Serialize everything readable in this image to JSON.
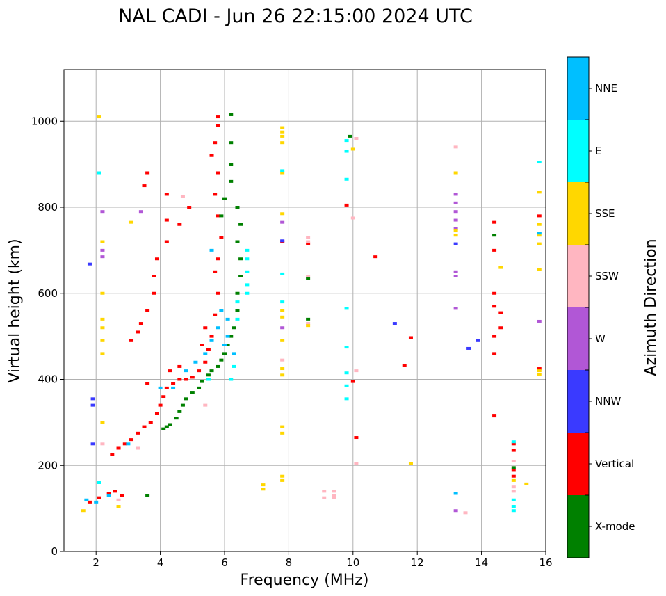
{
  "chart_data": {
    "type": "scatter",
    "title": "NAL CADI - Jun 26 22:15:00 2024 UTC",
    "xlabel": "Frequency (MHz)",
    "ylabel": "Virtual height (km)",
    "xlim": [
      1,
      16
    ],
    "ylim": [
      0,
      1120
    ],
    "xticks": [
      2,
      4,
      6,
      8,
      10,
      12,
      14,
      16
    ],
    "yticks": [
      0,
      200,
      400,
      600,
      800,
      1000
    ],
    "grid": true,
    "colorbar": {
      "title": "Azimuth Direction",
      "categories": [
        {
          "name": "X-mode",
          "color": "#008000"
        },
        {
          "name": "Vertical",
          "color": "#ff0000"
        },
        {
          "name": "NNW",
          "color": "#3a3aff"
        },
        {
          "name": "W",
          "color": "#b157d6"
        },
        {
          "name": "SSW",
          "color": "#ffb6c1"
        },
        {
          "name": "SSE",
          "color": "#ffd700"
        },
        {
          "name": "E",
          "color": "#00ffff"
        },
        {
          "name": "NNE",
          "color": "#00bfff"
        }
      ]
    },
    "series": [
      {
        "name": "Vertical",
        "points": [
          [
            1.8,
            115
          ],
          [
            2.1,
            125
          ],
          [
            2.4,
            135
          ],
          [
            2.6,
            140
          ],
          [
            2.8,
            130
          ],
          [
            2.5,
            225
          ],
          [
            2.7,
            240
          ],
          [
            2.9,
            250
          ],
          [
            3.1,
            260
          ],
          [
            3.3,
            275
          ],
          [
            3.5,
            290
          ],
          [
            3.7,
            300
          ],
          [
            3.9,
            320
          ],
          [
            4.0,
            340
          ],
          [
            4.1,
            360
          ],
          [
            4.2,
            380
          ],
          [
            4.4,
            390
          ],
          [
            4.6,
            400
          ],
          [
            4.8,
            400
          ],
          [
            5.0,
            405
          ],
          [
            5.2,
            420
          ],
          [
            5.4,
            440
          ],
          [
            5.5,
            470
          ],
          [
            5.6,
            500
          ],
          [
            5.7,
            550
          ],
          [
            5.8,
            600
          ],
          [
            5.7,
            650
          ],
          [
            5.8,
            680
          ],
          [
            5.9,
            730
          ],
          [
            5.8,
            780
          ],
          [
            5.7,
            830
          ],
          [
            5.8,
            880
          ],
          [
            5.6,
            920
          ],
          [
            5.7,
            950
          ],
          [
            5.8,
            990
          ],
          [
            5.8,
            1010
          ],
          [
            4.9,
            800
          ],
          [
            4.6,
            760
          ],
          [
            4.2,
            720
          ],
          [
            3.9,
            680
          ],
          [
            3.8,
            640
          ],
          [
            3.8,
            600
          ],
          [
            3.6,
            560
          ],
          [
            3.4,
            530
          ],
          [
            3.1,
            490
          ],
          [
            3.3,
            510
          ],
          [
            3.6,
            880
          ],
          [
            4.2,
            830
          ],
          [
            4.2,
            770
          ],
          [
            3.5,
            850
          ],
          [
            3.6,
            390
          ],
          [
            4.3,
            420
          ],
          [
            4.6,
            430
          ],
          [
            5.3,
            480
          ],
          [
            5.4,
            520
          ],
          [
            7.8,
            720
          ],
          [
            8.6,
            715
          ],
          [
            9.8,
            805
          ],
          [
            10.0,
            395
          ],
          [
            10.1,
            265
          ],
          [
            10.7,
            685
          ],
          [
            11.8,
            497
          ],
          [
            11.6,
            432
          ],
          [
            14.4,
            765
          ],
          [
            14.4,
            700
          ],
          [
            14.4,
            600
          ],
          [
            14.4,
            570
          ],
          [
            14.4,
            500
          ],
          [
            14.4,
            460
          ],
          [
            14.6,
            555
          ],
          [
            14.6,
            520
          ],
          [
            14.4,
            315
          ],
          [
            15.0,
            250
          ],
          [
            15.0,
            235
          ],
          [
            15.0,
            190
          ],
          [
            15.0,
            175
          ],
          [
            15.8,
            780
          ],
          [
            15.8,
            425
          ]
        ]
      },
      {
        "name": "X-mode",
        "points": [
          [
            3.6,
            130
          ],
          [
            4.1,
            285
          ],
          [
            4.2,
            290
          ],
          [
            4.3,
            295
          ],
          [
            4.5,
            310
          ],
          [
            4.6,
            325
          ],
          [
            4.7,
            340
          ],
          [
            4.8,
            355
          ],
          [
            5.0,
            370
          ],
          [
            5.2,
            380
          ],
          [
            5.3,
            395
          ],
          [
            5.5,
            410
          ],
          [
            5.6,
            420
          ],
          [
            5.8,
            430
          ],
          [
            5.9,
            445
          ],
          [
            6.0,
            460
          ],
          [
            6.1,
            480
          ],
          [
            6.2,
            500
          ],
          [
            6.3,
            520
          ],
          [
            6.4,
            560
          ],
          [
            6.4,
            600
          ],
          [
            6.5,
            640
          ],
          [
            6.5,
            680
          ],
          [
            6.4,
            720
          ],
          [
            6.5,
            760
          ],
          [
            6.4,
            800
          ],
          [
            6.2,
            860
          ],
          [
            6.2,
            900
          ],
          [
            6.2,
            950
          ],
          [
            6.2,
            1015
          ],
          [
            6.0,
            820
          ],
          [
            5.9,
            780
          ],
          [
            8.6,
            635
          ],
          [
            8.6,
            540
          ],
          [
            9.9,
            965
          ],
          [
            15.0,
            195
          ],
          [
            14.4,
            735
          ]
        ]
      },
      {
        "name": "NNW",
        "points": [
          [
            1.8,
            668
          ],
          [
            1.9,
            355
          ],
          [
            1.9,
            340
          ],
          [
            1.9,
            250
          ],
          [
            7.8,
            722
          ],
          [
            11.3,
            530
          ],
          [
            13.2,
            715
          ],
          [
            13.6,
            472
          ],
          [
            13.9,
            490
          ]
        ]
      },
      {
        "name": "W",
        "points": [
          [
            2.2,
            790
          ],
          [
            2.2,
            700
          ],
          [
            2.2,
            685
          ],
          [
            3.4,
            790
          ],
          [
            7.8,
            765
          ],
          [
            7.8,
            520
          ],
          [
            13.2,
            830
          ],
          [
            13.2,
            810
          ],
          [
            13.2,
            790
          ],
          [
            13.2,
            770
          ],
          [
            13.2,
            750
          ],
          [
            13.2,
            650
          ],
          [
            13.2,
            640
          ],
          [
            13.2,
            565
          ],
          [
            13.2,
            95
          ],
          [
            15.8,
            535
          ]
        ]
      },
      {
        "name": "SSW",
        "points": [
          [
            2.2,
            250
          ],
          [
            2.7,
            120
          ],
          [
            3.3,
            240
          ],
          [
            4.7,
            825
          ],
          [
            5.4,
            340
          ],
          [
            7.8,
            445
          ],
          [
            8.6,
            730
          ],
          [
            8.6,
            720
          ],
          [
            8.6,
            640
          ],
          [
            8.6,
            530
          ],
          [
            9.1,
            140
          ],
          [
            9.1,
            125
          ],
          [
            9.4,
            140
          ],
          [
            9.4,
            130
          ],
          [
            9.4,
            125
          ],
          [
            10.1,
            960
          ],
          [
            10.0,
            775
          ],
          [
            10.1,
            420
          ],
          [
            10.1,
            205
          ],
          [
            13.2,
            940
          ],
          [
            13.5,
            90
          ],
          [
            15.0,
            210
          ],
          [
            15.0,
            150
          ],
          [
            15.0,
            140
          ]
        ]
      },
      {
        "name": "SSE",
        "points": [
          [
            1.6,
            95
          ],
          [
            2.1,
            1010
          ],
          [
            2.2,
            720
          ],
          [
            2.2,
            600
          ],
          [
            2.2,
            540
          ],
          [
            2.2,
            520
          ],
          [
            2.2,
            490
          ],
          [
            2.2,
            460
          ],
          [
            2.2,
            300
          ],
          [
            2.7,
            105
          ],
          [
            3.1,
            765
          ],
          [
            7.2,
            155
          ],
          [
            7.2,
            145
          ],
          [
            7.8,
            985
          ],
          [
            7.8,
            975
          ],
          [
            7.8,
            965
          ],
          [
            7.8,
            950
          ],
          [
            7.8,
            880
          ],
          [
            7.8,
            785
          ],
          [
            7.8,
            560
          ],
          [
            7.8,
            545
          ],
          [
            7.8,
            490
          ],
          [
            7.8,
            425
          ],
          [
            7.8,
            410
          ],
          [
            7.8,
            290
          ],
          [
            7.8,
            275
          ],
          [
            7.8,
            175
          ],
          [
            7.8,
            165
          ],
          [
            8.6,
            525
          ],
          [
            10.0,
            935
          ],
          [
            11.8,
            205
          ],
          [
            13.2,
            880
          ],
          [
            13.2,
            745
          ],
          [
            13.2,
            735
          ],
          [
            14.6,
            660
          ],
          [
            15.0,
            165
          ],
          [
            15.8,
            835
          ],
          [
            15.8,
            760
          ],
          [
            15.8,
            735
          ],
          [
            15.8,
            715
          ],
          [
            15.8,
            655
          ],
          [
            15.8,
            420
          ],
          [
            15.8,
            412
          ],
          [
            15.4,
            157
          ]
        ]
      },
      {
        "name": "E",
        "points": [
          [
            2.1,
            880
          ],
          [
            2.1,
            160
          ],
          [
            5.5,
            400
          ],
          [
            6.2,
            400
          ],
          [
            6.3,
            430
          ],
          [
            6.7,
            700
          ],
          [
            6.7,
            680
          ],
          [
            6.7,
            650
          ],
          [
            6.7,
            620
          ],
          [
            6.7,
            600
          ],
          [
            6.4,
            580
          ],
          [
            6.4,
            540
          ],
          [
            7.8,
            885
          ],
          [
            7.8,
            645
          ],
          [
            7.8,
            580
          ],
          [
            9.8,
            955
          ],
          [
            9.8,
            930
          ],
          [
            9.8,
            865
          ],
          [
            9.8,
            565
          ],
          [
            9.8,
            475
          ],
          [
            9.8,
            415
          ],
          [
            9.8,
            385
          ],
          [
            9.8,
            355
          ],
          [
            15.0,
            255
          ],
          [
            15.0,
            120
          ],
          [
            15.0,
            105
          ],
          [
            15.0,
            95
          ],
          [
            15.8,
            905
          ],
          [
            15.8,
            740
          ]
        ]
      },
      {
        "name": "NNE",
        "points": [
          [
            1.7,
            120
          ],
          [
            2.0,
            115
          ],
          [
            2.4,
            130
          ],
          [
            3.0,
            250
          ],
          [
            4.0,
            380
          ],
          [
            4.4,
            380
          ],
          [
            4.8,
            420
          ],
          [
            5.1,
            440
          ],
          [
            5.4,
            460
          ],
          [
            5.6,
            490
          ],
          [
            5.8,
            520
          ],
          [
            6.1,
            540
          ],
          [
            5.9,
            560
          ],
          [
            6.3,
            460
          ],
          [
            5.6,
            700
          ],
          [
            6.1,
            500
          ],
          [
            6.0,
            480
          ],
          [
            13.2,
            135
          ],
          [
            15.8,
            740
          ]
        ]
      }
    ]
  }
}
